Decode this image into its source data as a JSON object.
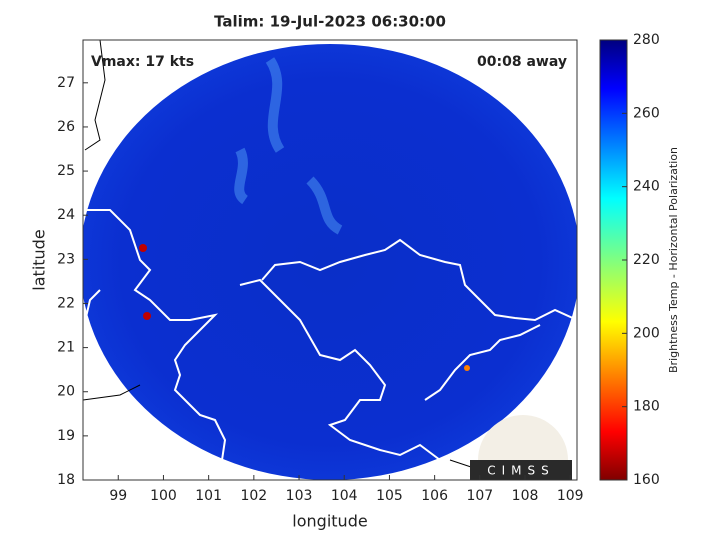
{
  "chart_data": {
    "type": "map",
    "title": "Talim: 19-Jul-2023 06:30:00",
    "annotations": [
      "Vmax: 17 kts",
      "00:08 away"
    ],
    "x_label": "longitude",
    "y_label": "latitude",
    "xlim": [
      98.22,
      109.15
    ],
    "xticks": [
      99,
      100,
      101,
      102,
      103,
      104,
      105,
      106,
      107,
      108,
      109
    ],
    "ylim": [
      18,
      27.97
    ],
    "yticks": [
      18,
      19,
      20,
      21,
      22,
      23,
      24,
      25,
      26,
      27
    ],
    "colorbar": {
      "label": "Brightness Temp - Horizontal Polarization",
      "lim": [
        160,
        280
      ],
      "ticks": [
        160,
        180,
        200,
        220,
        240,
        260,
        280
      ],
      "colormap": "jet"
    },
    "logo": "CIMSS"
  }
}
